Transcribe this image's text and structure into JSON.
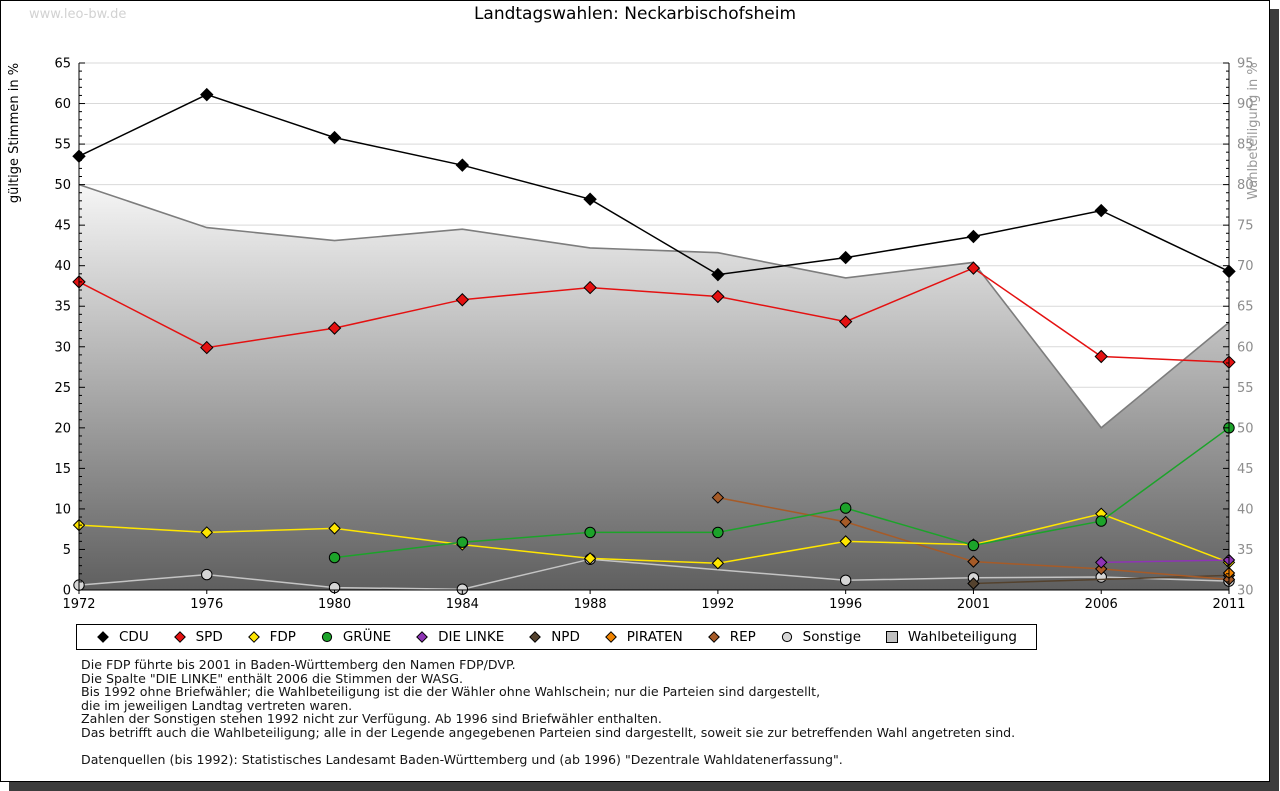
{
  "watermark": "www.leo-bw.de",
  "title": "Landtagswahlen: Neckarbischofsheim",
  "chart_data": {
    "type": "line",
    "title": "Landtagswahlen: Neckarbischofsheim",
    "categories": [
      "1972",
      "1976",
      "1980",
      "1984",
      "1988",
      "1992",
      "1996",
      "2001",
      "2006",
      "2011"
    ],
    "left_axis": {
      "label": "gültige Stimmen in %",
      "min": 0,
      "max": 65,
      "ticks": [
        0,
        5,
        10,
        15,
        20,
        25,
        30,
        35,
        40,
        45,
        50,
        55,
        60,
        65
      ]
    },
    "right_axis": {
      "label": "Wahlbeteiligung in %",
      "min": 30,
      "max": 95,
      "ticks": [
        30,
        35,
        40,
        45,
        50,
        55,
        60,
        65,
        70,
        75,
        80,
        85,
        90,
        95
      ]
    },
    "grid": true,
    "legend_position": "bottom",
    "series": [
      {
        "name": "CDU",
        "color": "#000000",
        "marker": "diamond",
        "axis": "left",
        "ms": 6,
        "values": [
          53.5,
          61.1,
          55.8,
          52.4,
          48.2,
          38.9,
          41.0,
          43.6,
          46.8,
          39.3
        ]
      },
      {
        "name": "SPD",
        "color": "#e41111",
        "marker": "diamond",
        "axis": "left",
        "ms": 6,
        "values": [
          38.0,
          29.9,
          32.3,
          35.8,
          37.3,
          36.2,
          33.1,
          39.7,
          28.8,
          28.1
        ]
      },
      {
        "name": "FDP",
        "color": "#ffe600",
        "marker": "diamond",
        "axis": "left",
        "ms": 5.5,
        "values": [
          8.0,
          7.1,
          7.6,
          5.6,
          3.9,
          3.3,
          6.0,
          5.6,
          9.4,
          3.4
        ]
      },
      {
        "name": "GRÜNE",
        "color": "#1ca32a",
        "marker": "circle",
        "axis": "left",
        "ms": 5.2,
        "values": [
          null,
          null,
          4.0,
          5.9,
          7.1,
          7.1,
          10.1,
          5.5,
          8.5,
          20.0
        ]
      },
      {
        "name": "DIE LINKE",
        "color": "#8e34b5",
        "marker": "diamond",
        "axis": "left",
        "ms": 5.5,
        "values": [
          null,
          null,
          null,
          null,
          null,
          null,
          null,
          null,
          3.4,
          3.7
        ]
      },
      {
        "name": "NPD",
        "color": "#54422e",
        "marker": "diamond",
        "axis": "left",
        "ms": 5.5,
        "values": [
          null,
          null,
          null,
          null,
          null,
          null,
          null,
          0.8,
          null,
          1.8
        ]
      },
      {
        "name": "PIRATEN",
        "color": "#f08300",
        "marker": "diamond",
        "axis": "left",
        "ms": 5.5,
        "values": [
          null,
          null,
          null,
          null,
          null,
          null,
          null,
          null,
          null,
          2.1
        ]
      },
      {
        "name": "REP",
        "color": "#a65b28",
        "marker": "diamond",
        "axis": "left",
        "ms": 5.5,
        "values": [
          null,
          null,
          null,
          null,
          null,
          11.4,
          8.4,
          3.5,
          2.6,
          1.3
        ]
      },
      {
        "name": "Sonstige",
        "color": "#c4c4c4",
        "marker": "circle",
        "axis": "left",
        "ms": 5.2,
        "fill": "#d6d6d6",
        "values": [
          0.6,
          1.9,
          0.3,
          0.1,
          3.8,
          null,
          1.2,
          1.5,
          1.6,
          1.1
        ]
      },
      {
        "name": "Wahlbeteiligung",
        "color": "#7d7d7d",
        "marker": "square",
        "axis": "right",
        "type": "area",
        "values": [
          80.0,
          74.7,
          73.1,
          74.5,
          72.2,
          71.6,
          68.5,
          70.4,
          50.0,
          63.0
        ]
      }
    ],
    "zorder": [
      "Wahlbeteiligung",
      "Sonstige",
      "NPD",
      "REP",
      "PIRATEN",
      "FDP",
      "GRÜNE",
      "DIE LINKE",
      "SPD",
      "CDU"
    ]
  },
  "notes": [
    "Die FDP führte bis 2001 in Baden-Württemberg den Namen FDP/DVP.",
    "Die Spalte \"DIE LINKE\" enthält 2006 die Stimmen der WASG.",
    "Bis 1992 ohne Briefwähler; die Wahlbeteiligung ist die der Wähler ohne Wahlschein; nur die Parteien sind dargestellt,",
    "die im jeweiligen Landtag vertreten waren.",
    "Zahlen der Sonstigen stehen 1992 nicht zur Verfügung. Ab 1996 sind Briefwähler enthalten.",
    "Das betrifft auch die Wahlbeteiligung; alle in der Legende angegebenen Parteien sind dargestellt, soweit sie zur betreffenden Wahl angetreten sind."
  ],
  "source": "Datenquellen (bis 1992): Statistisches Landesamt Baden-Württemberg und (ab 1996) \"Dezentrale Wahldatenerfassung\"."
}
